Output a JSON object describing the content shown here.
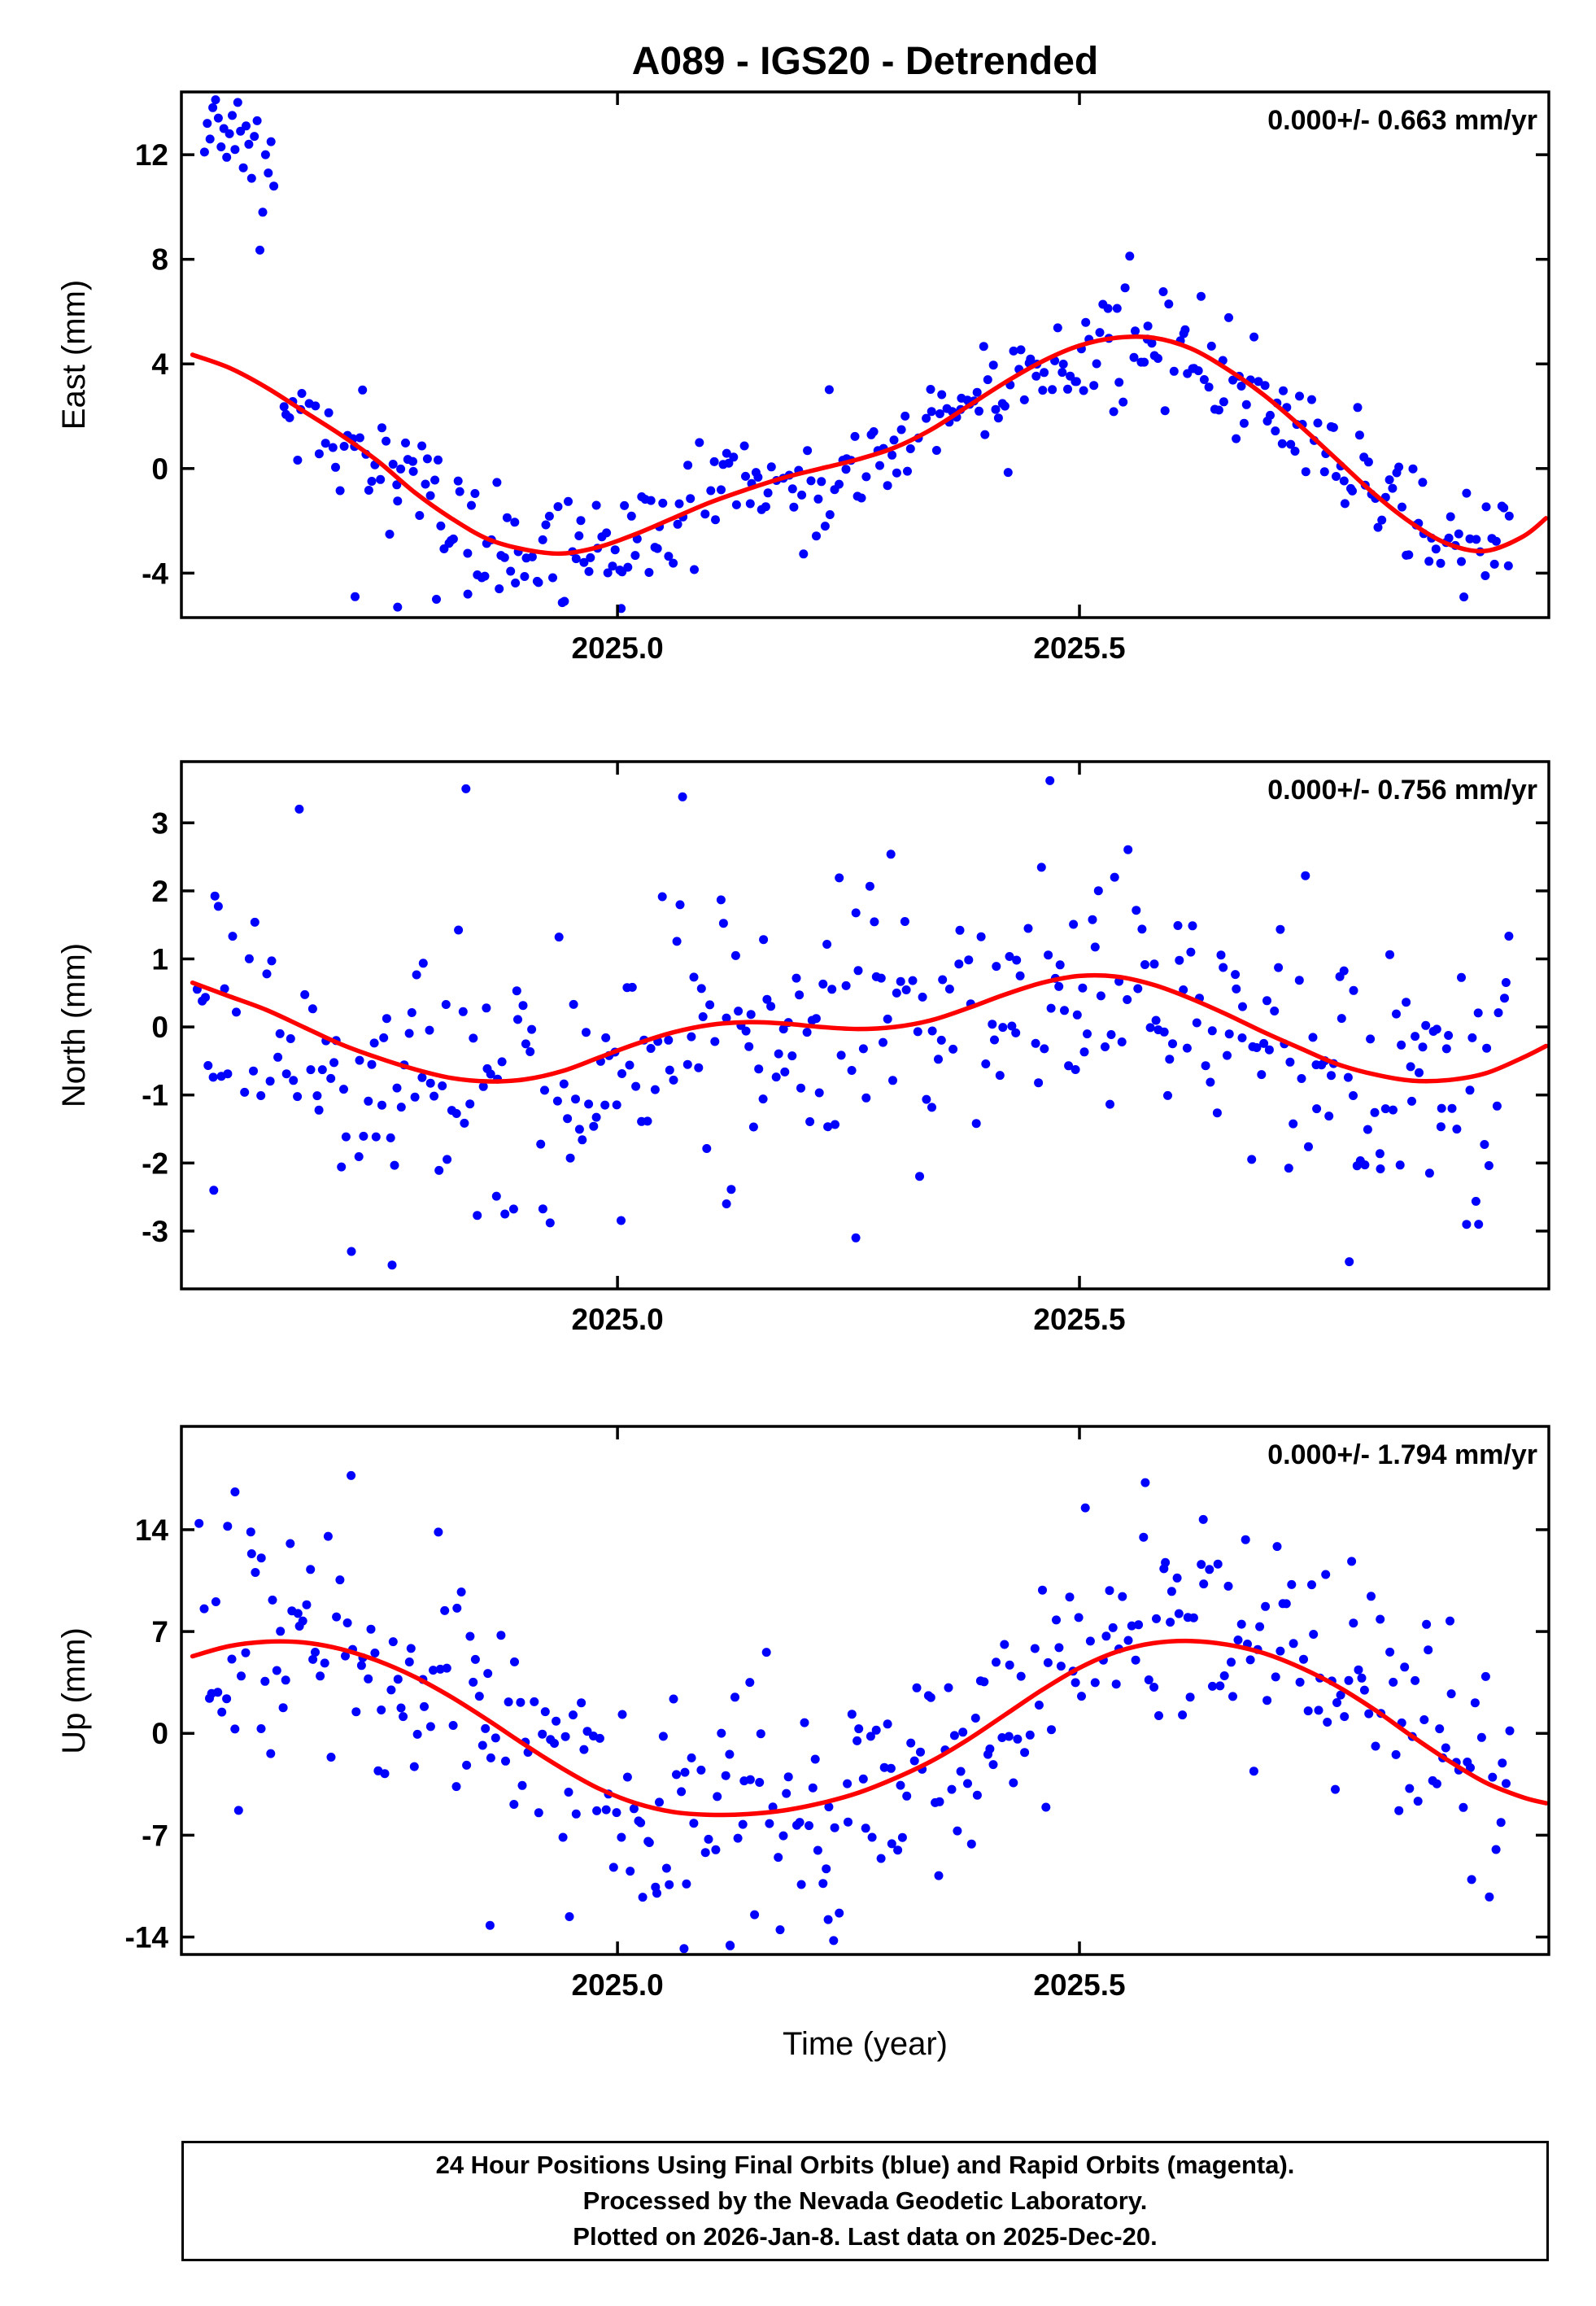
{
  "title": "A089 - IGS20 - Detrended",
  "xlabel": "Time (year)",
  "footer": {
    "lines": [
      "24 Hour Positions Using Final Orbits (blue) and Rapid Orbits (magenta).",
      "Processed by the Nevada Geodetic Laboratory.",
      "Plotted on 2026-Jan-8. Last data on 2025-Dec-20."
    ]
  },
  "colors": {
    "points": "#0000ff",
    "trend": "#ff0000",
    "frame": "#000000"
  },
  "chart_data": [
    {
      "type": "scatter",
      "name": "east",
      "ylabel": "East (mm)",
      "annotation": "0.000+/- 0.663 mm/yr",
      "xlim": [
        2024.528,
        2026.008
      ],
      "ylim": [
        -5.7,
        14.4
      ],
      "xticks": [
        2025.0,
        2025.5
      ],
      "xtick_labels": [
        "2025.0",
        "2025.5"
      ],
      "yticks": [
        -4,
        0,
        4,
        8,
        12
      ],
      "trend": {
        "x": [
          2024.54,
          2024.58,
          2024.62,
          2024.66,
          2024.7,
          2024.74,
          2024.78,
          2024.82,
          2024.86,
          2024.9,
          2024.94,
          2024.98,
          2025.02,
          2025.06,
          2025.1,
          2025.14,
          2025.18,
          2025.22,
          2025.26,
          2025.3,
          2025.34,
          2025.38,
          2025.42,
          2025.46,
          2025.5,
          2025.54,
          2025.58,
          2025.62,
          2025.66,
          2025.7,
          2025.74,
          2025.78,
          2025.82,
          2025.86,
          2025.9,
          2025.94,
          2025.98,
          2026.005
        ],
        "y": [
          4.35,
          3.85,
          3.1,
          2.2,
          1.3,
          0.3,
          -0.9,
          -1.9,
          -2.7,
          -3.1,
          -3.25,
          -3.0,
          -2.5,
          -1.9,
          -1.3,
          -0.8,
          -0.35,
          0.0,
          0.35,
          0.8,
          1.5,
          2.4,
          3.3,
          4.1,
          4.7,
          5.0,
          5.0,
          4.6,
          3.8,
          2.8,
          1.6,
          0.3,
          -1.0,
          -2.1,
          -2.9,
          -3.15,
          -2.6,
          -1.9
        ]
      },
      "scatter": {
        "x_start": 2024.637,
        "x_end": 2025.968,
        "count": 375,
        "sigma": 1.12,
        "seed": 42
      },
      "extra_points": [
        [
          2024.553,
          12.1
        ],
        [
          2024.556,
          13.2
        ],
        [
          2024.559,
          12.6
        ],
        [
          2024.562,
          13.8
        ],
        [
          2024.565,
          14.1
        ],
        [
          2024.568,
          13.4
        ],
        [
          2024.571,
          12.3
        ],
        [
          2024.574,
          13.0
        ],
        [
          2024.577,
          11.9
        ],
        [
          2024.58,
          12.8
        ],
        [
          2024.583,
          13.5
        ],
        [
          2024.586,
          12.2
        ],
        [
          2024.589,
          14.0
        ],
        [
          2024.592,
          12.9
        ],
        [
          2024.595,
          11.5
        ],
        [
          2024.598,
          13.1
        ],
        [
          2024.601,
          12.4
        ],
        [
          2024.604,
          11.1
        ],
        [
          2024.607,
          12.7
        ],
        [
          2024.61,
          13.3
        ],
        [
          2024.613,
          8.35
        ],
        [
          2024.616,
          9.8
        ],
        [
          2024.619,
          12.0
        ],
        [
          2024.622,
          11.3
        ],
        [
          2024.625,
          12.5
        ],
        [
          2024.628,
          10.8
        ],
        [
          2024.716,
          -4.9
        ],
        [
          2024.762,
          -5.3
        ],
        [
          2024.804,
          -5.0
        ],
        [
          2025.004,
          -5.35
        ],
        [
          2024.872,
          -4.6
        ],
        [
          2024.838,
          -4.8
        ]
      ]
    },
    {
      "type": "scatter",
      "name": "north",
      "ylabel": "North (mm)",
      "annotation": "0.000+/- 0.756 mm/yr",
      "xlim": [
        2024.528,
        2026.008
      ],
      "ylim": [
        -3.85,
        3.9
      ],
      "xticks": [
        2025.0,
        2025.5
      ],
      "xtick_labels": [
        "2025.0",
        "2025.5"
      ],
      "yticks": [
        -3,
        -2,
        -1,
        0,
        1,
        2,
        3
      ],
      "trend": {
        "x": [
          2024.54,
          2024.58,
          2024.62,
          2024.66,
          2024.7,
          2024.74,
          2024.78,
          2024.82,
          2024.86,
          2024.9,
          2024.94,
          2024.98,
          2025.02,
          2025.06,
          2025.1,
          2025.14,
          2025.18,
          2025.22,
          2025.26,
          2025.3,
          2025.34,
          2025.38,
          2025.42,
          2025.46,
          2025.5,
          2025.54,
          2025.58,
          2025.62,
          2025.66,
          2025.7,
          2025.74,
          2025.78,
          2025.82,
          2025.86,
          2025.9,
          2025.94,
          2025.98,
          2026.005
        ],
        "y": [
          0.65,
          0.45,
          0.25,
          0.0,
          -0.25,
          -0.45,
          -0.62,
          -0.75,
          -0.8,
          -0.77,
          -0.65,
          -0.45,
          -0.25,
          -0.08,
          0.03,
          0.07,
          0.05,
          0.0,
          -0.03,
          0.0,
          0.1,
          0.28,
          0.48,
          0.65,
          0.75,
          0.74,
          0.62,
          0.42,
          0.18,
          -0.08,
          -0.32,
          -0.55,
          -0.7,
          -0.79,
          -0.78,
          -0.68,
          -0.45,
          -0.28
        ]
      },
      "scatter": {
        "x_start": 2024.545,
        "x_end": 2025.968,
        "count": 390,
        "sigma": 1.05,
        "seed": 7
      },
      "extra_points": [
        [
          2024.712,
          -3.3
        ],
        [
          2024.756,
          -3.5
        ],
        [
          2024.836,
          3.5
        ],
        [
          2025.258,
          -3.1
        ],
        [
          2025.468,
          3.62
        ],
        [
          2025.792,
          -3.45
        ],
        [
          2024.563,
          -2.4
        ],
        [
          2025.932,
          -2.9
        ],
        [
          2025.118,
          -2.6
        ]
      ]
    },
    {
      "type": "scatter",
      "name": "up",
      "ylabel": "Up (mm)",
      "annotation": "0.000+/- 1.794 mm/yr",
      "xlim": [
        2024.528,
        2026.008
      ],
      "ylim": [
        -15.2,
        21.1
      ],
      "xticks": [
        2025.0,
        2025.5
      ],
      "xtick_labels": [
        "2025.0",
        "2025.5"
      ],
      "yticks": [
        -14,
        -7,
        0,
        7,
        14
      ],
      "trend": {
        "x": [
          2024.54,
          2024.58,
          2024.62,
          2024.66,
          2024.7,
          2024.74,
          2024.78,
          2024.82,
          2024.86,
          2024.9,
          2024.94,
          2024.98,
          2025.02,
          2025.06,
          2025.1,
          2025.14,
          2025.18,
          2025.22,
          2025.26,
          2025.3,
          2025.34,
          2025.38,
          2025.42,
          2025.46,
          2025.5,
          2025.54,
          2025.58,
          2025.62,
          2025.66,
          2025.7,
          2025.74,
          2025.78,
          2025.82,
          2025.86,
          2025.9,
          2025.94,
          2025.98,
          2026.005
        ],
        "y": [
          5.3,
          6.0,
          6.3,
          6.25,
          5.8,
          5.0,
          3.9,
          2.5,
          0.9,
          -0.8,
          -2.4,
          -3.8,
          -4.8,
          -5.4,
          -5.6,
          -5.55,
          -5.3,
          -4.8,
          -4.1,
          -3.1,
          -1.9,
          -0.4,
          1.3,
          3.0,
          4.5,
          5.6,
          6.2,
          6.35,
          6.1,
          5.5,
          4.5,
          3.2,
          1.6,
          -0.2,
          -1.9,
          -3.4,
          -4.4,
          -4.8
        ]
      },
      "scatter": {
        "x_start": 2024.545,
        "x_end": 2025.968,
        "count": 390,
        "sigma": 4.1,
        "seed": 13
      },
      "extra_points": [
        [
          2024.586,
          16.6
        ],
        [
          2025.634,
          14.7
        ],
        [
          2024.862,
          -13.2
        ],
        [
          2025.072,
          -14.8
        ],
        [
          2025.122,
          -14.6
        ],
        [
          2025.176,
          -13.5
        ],
        [
          2024.948,
          -12.6
        ],
        [
          2025.228,
          -12.8
        ]
      ]
    }
  ]
}
